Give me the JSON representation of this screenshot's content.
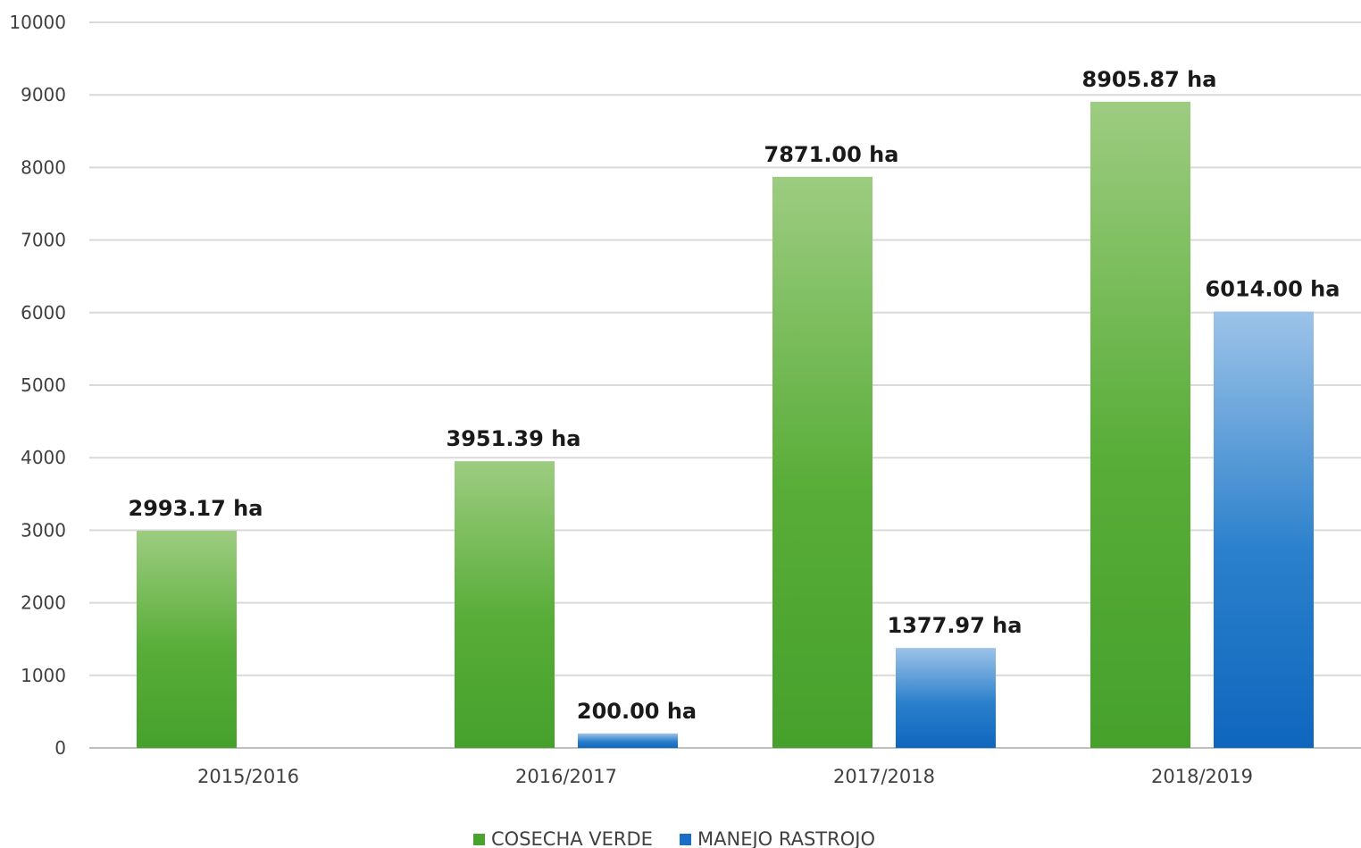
{
  "chart_data": {
    "type": "bar",
    "title": "",
    "xlabel": "",
    "ylabel": "",
    "categories": [
      "2015/2016",
      "2016/2017",
      "2017/2018",
      "2018/2019"
    ],
    "ylim": [
      0,
      10000
    ],
    "yticks": [
      0,
      1000,
      2000,
      3000,
      4000,
      5000,
      6000,
      7000,
      8000,
      9000,
      10000
    ],
    "grid": true,
    "legend_position": "bottom",
    "series": [
      {
        "name": "COSECHA VERDE",
        "color": "#4aa32f",
        "values": [
          2993.17,
          3951.39,
          7871.0,
          8905.87
        ],
        "labels": [
          "2993.17  ha",
          "3951.39  ha",
          "7871.00  ha",
          "8905.87  ha"
        ]
      },
      {
        "name": "MANEJO RASTROJO",
        "color": "#1a6fc4",
        "values": [
          null,
          200.0,
          1377.97,
          6014.0
        ],
        "labels": [
          "",
          "200.00  ha",
          "1377.97  ha",
          "6014.00  ha"
        ]
      }
    ]
  }
}
